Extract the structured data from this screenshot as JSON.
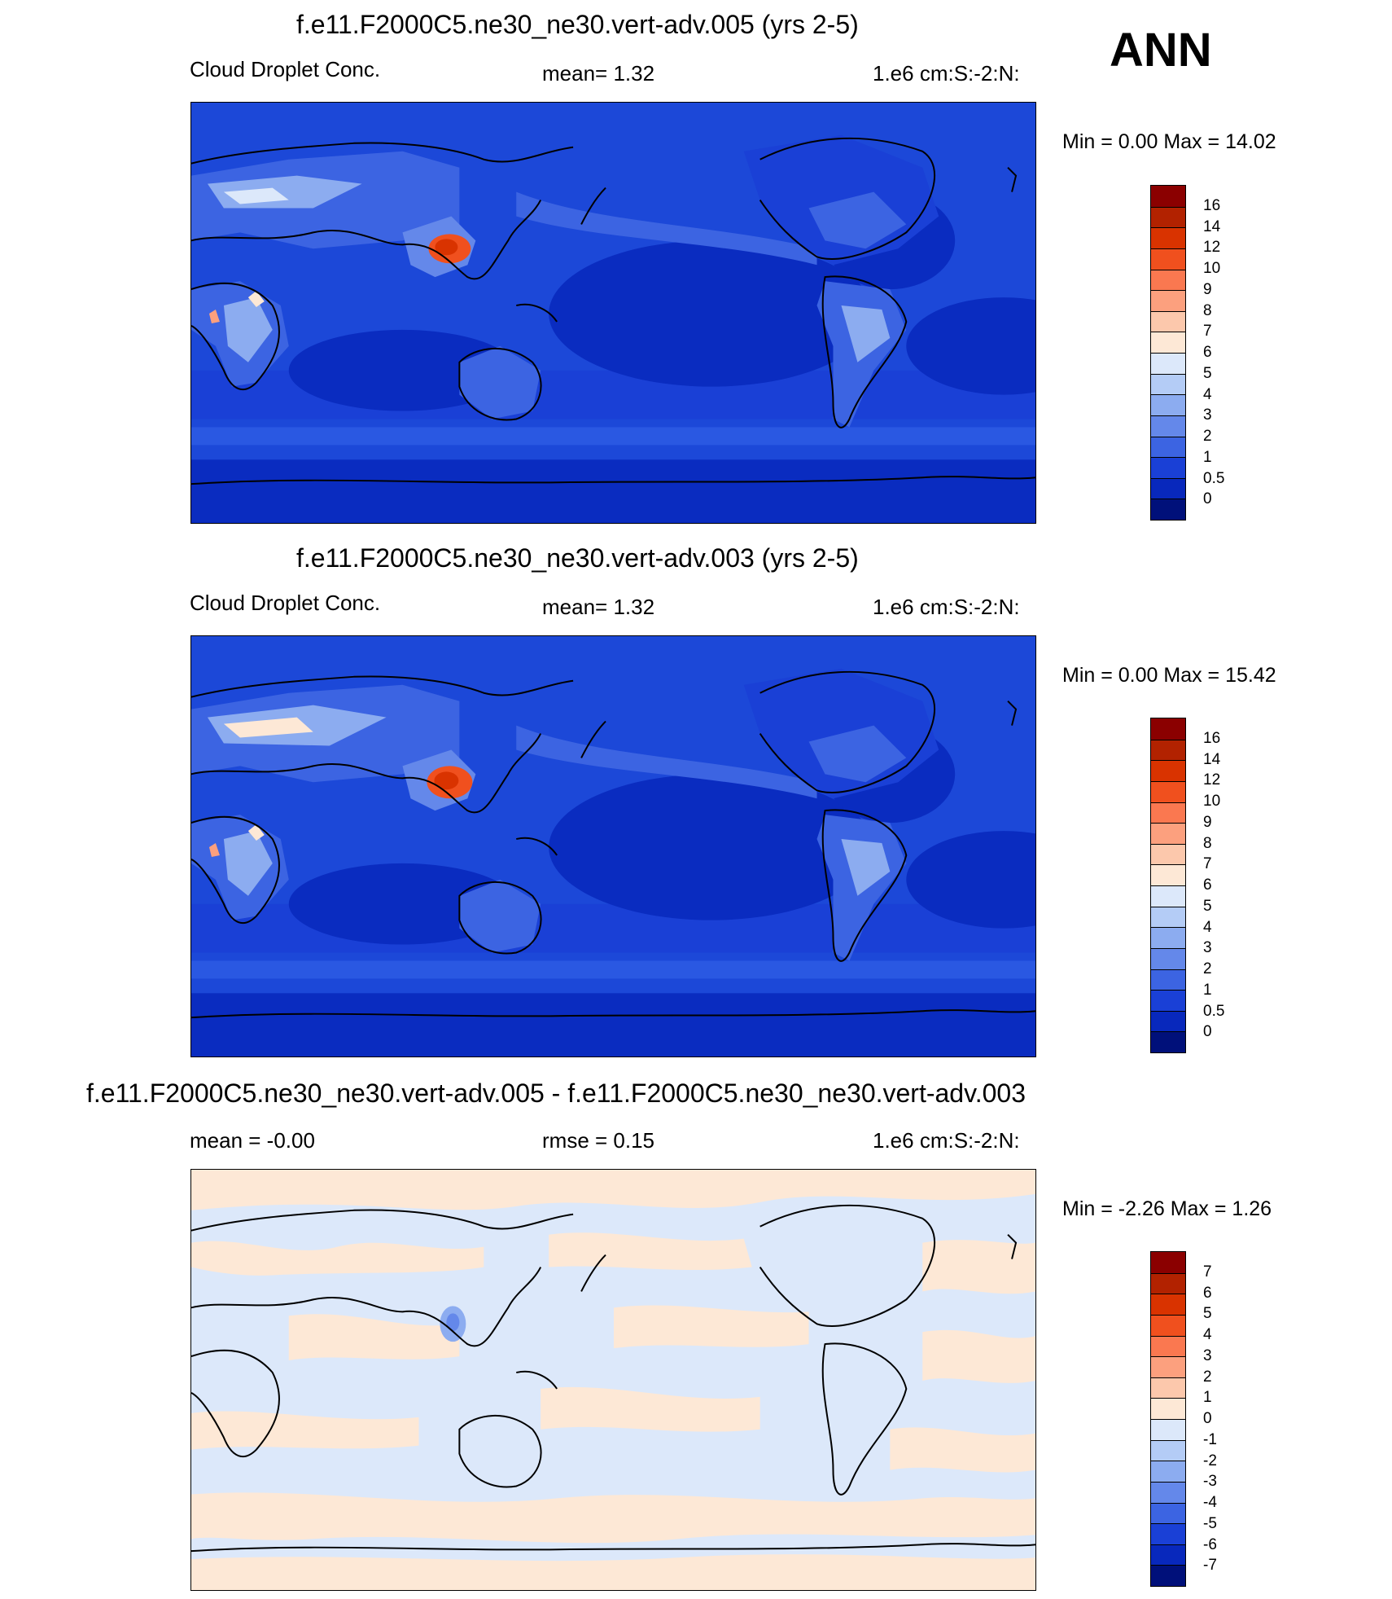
{
  "season": "ANN",
  "panels": [
    {
      "title": "f.e11.F2000C5.ne30_ne30.vert-adv.005 (yrs 2-5)",
      "left_label": "Cloud Droplet Conc.",
      "center_label": "mean=   1.32",
      "right_label": "1.e6 cm:S:-2:N:",
      "min_max": "Min =    0.00 Max =  14.02",
      "colorbar_ticks": [
        "16",
        "14",
        "12",
        "10",
        "9",
        "8",
        "7",
        "6",
        "5",
        "4",
        "3",
        "2",
        "1",
        "0.5",
        "0"
      ]
    },
    {
      "title": "f.e11.F2000C5.ne30_ne30.vert-adv.003 (yrs 2-5)",
      "left_label": "Cloud Droplet Conc.",
      "center_label": "mean=   1.32",
      "right_label": "1.e6 cm:S:-2:N:",
      "min_max": "Min =    0.00 Max =  15.42",
      "colorbar_ticks": [
        "16",
        "14",
        "12",
        "10",
        "9",
        "8",
        "7",
        "6",
        "5",
        "4",
        "3",
        "2",
        "1",
        "0.5",
        "0"
      ]
    },
    {
      "title": "f.e11.F2000C5.ne30_ne30.vert-adv.005 - f.e11.F2000C5.ne30_ne30.vert-adv.003",
      "left_label": "mean =  -0.00",
      "center_label": "rmse =   0.15",
      "right_label": "1.e6 cm:S:-2:N:",
      "min_max": "Min =  -2.26 Max =   1.26",
      "colorbar_ticks": [
        "7",
        "6",
        "5",
        "4",
        "3",
        "2",
        "1",
        "0",
        "-1",
        "-2",
        "-3",
        "-4",
        "-5",
        "-6",
        "-7"
      ]
    }
  ],
  "colors": {
    "abs_colorbar": [
      "#8b0000",
      "#b22200",
      "#d93300",
      "#f0501e",
      "#fa7850",
      "#fca07e",
      "#fcc8ac",
      "#fde8d6",
      "#dce8fa",
      "#b4ccf6",
      "#8cacf0",
      "#6488ea",
      "#3c64e2",
      "#1a40d6",
      "#0828bc",
      "#00107a"
    ],
    "diff_colorbar": [
      "#8b0000",
      "#b22200",
      "#d93300",
      "#f0501e",
      "#fa7850",
      "#fca07e",
      "#fcc8ac",
      "#fde8d6",
      "#dce8fa",
      "#b4ccf6",
      "#8cacf0",
      "#6488ea",
      "#3c64e2",
      "#1a40d6",
      "#0828bc",
      "#00107a"
    ],
    "ocean_deep": "#0a2cc0",
    "ocean_mid": "#1c48d8",
    "ocean_light": "#2a58e2",
    "diff_pos": "#fde8d6",
    "diff_neg": "#dce8fa"
  }
}
